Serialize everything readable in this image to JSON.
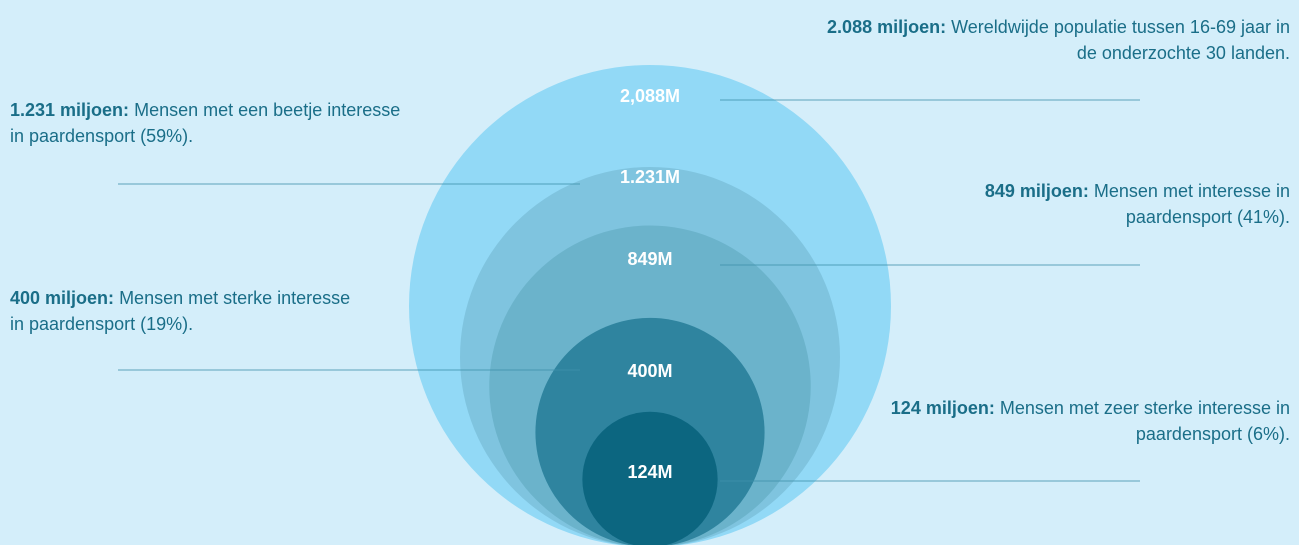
{
  "chart_data": {
    "type": "nested_circles",
    "values": [
      2088,
      1231,
      849,
      400,
      124
    ],
    "value_labels": [
      "2,088M",
      "1.231M",
      "849M",
      "400M",
      "124M"
    ],
    "colors": [
      "#92d9f6",
      "#7fc4df",
      "#6bb3cb",
      "#2f849f",
      "#0c6680"
    ],
    "annotations": [
      {
        "bold": "2.088 miljoen:",
        "text": "Wereldwijde populatie tussen 16-69 jaar in de onderzochte 30 landen."
      },
      {
        "bold": "1.231 miljoen:",
        "text": "Mensen met een beetje interesse in paardensport (59%)."
      },
      {
        "bold": "849 miljoen:",
        "text": "Mensen met interesse in paardensport (41%)."
      },
      {
        "bold": "400 miljoen:",
        "text": "Mensen met sterke interesse in paardensport (19%)."
      },
      {
        "bold": "124 miljoen:",
        "text": "Mensen met zeer sterke interesse in paardensport (6%)."
      }
    ]
  }
}
